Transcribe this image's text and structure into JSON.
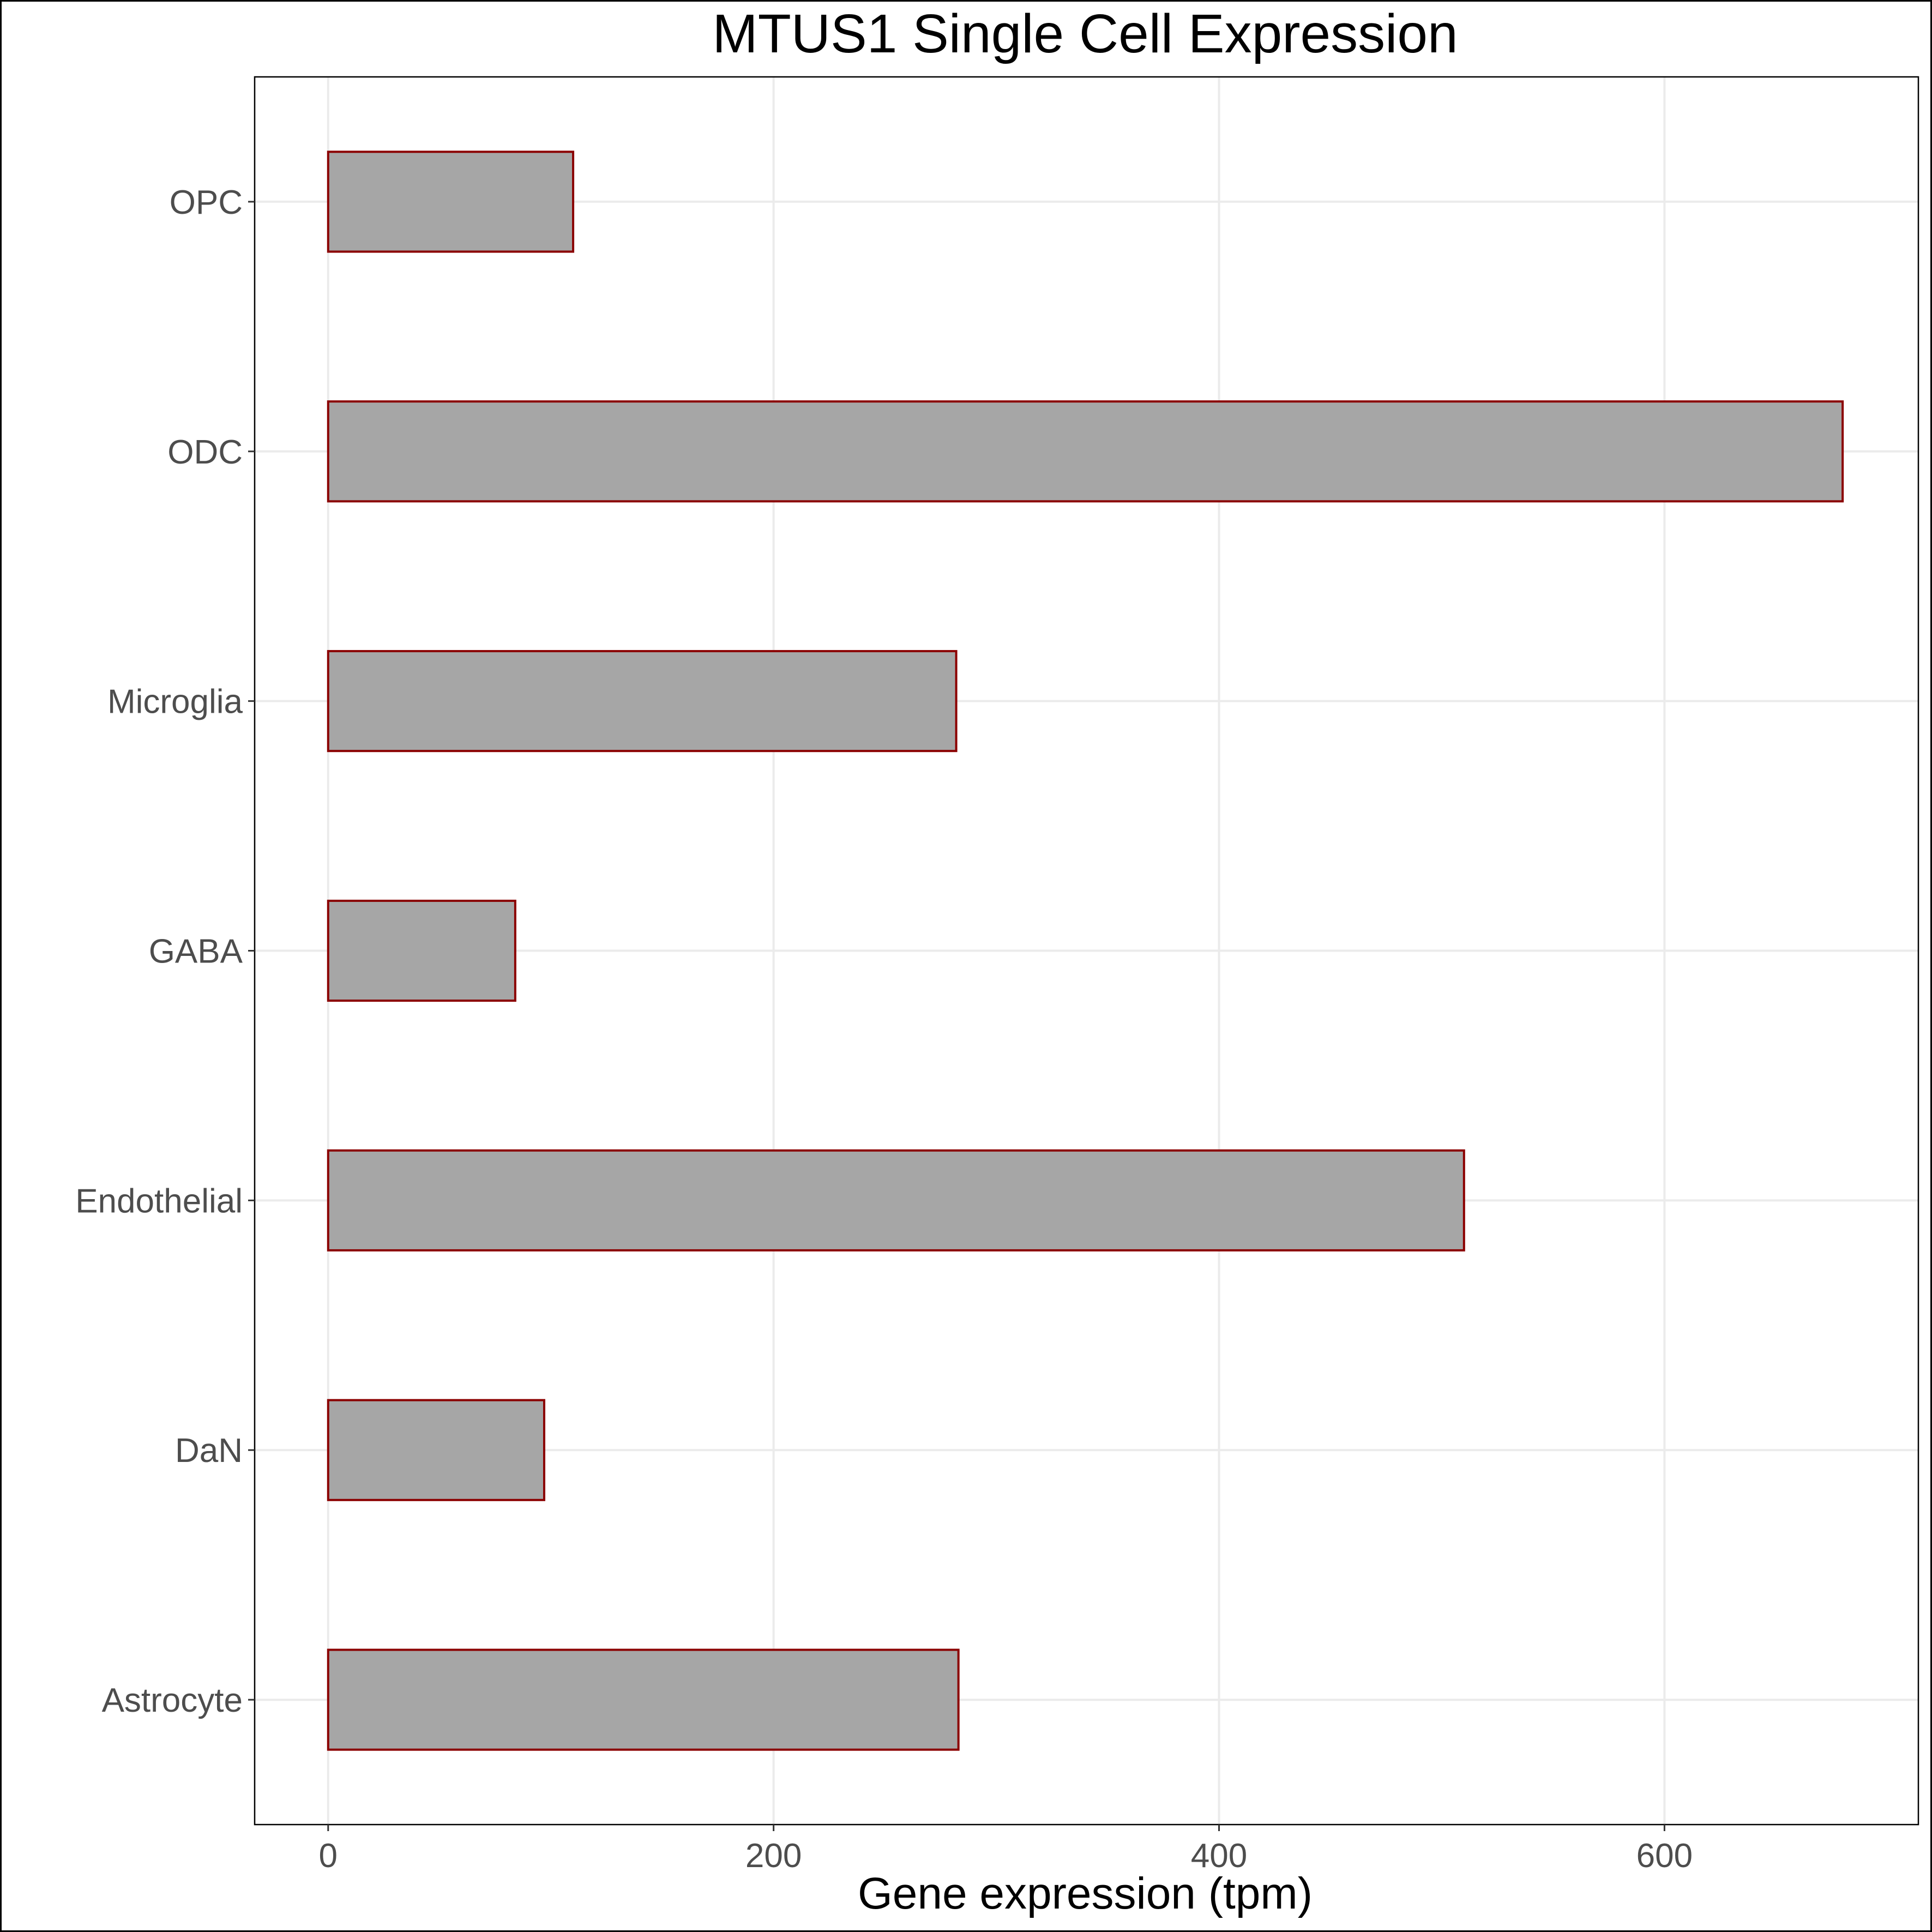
{
  "chart_data": {
    "type": "bar",
    "orientation": "horizontal",
    "title": "MTUS1 Single Cell Expression",
    "xlabel": "Gene expression (tpm)",
    "ylabel": "",
    "categories": [
      "Astrocyte",
      "DaN",
      "Endothelial",
      "GABA",
      "Microglia",
      "ODC",
      "OPC"
    ],
    "values": [
      283,
      97,
      510,
      84,
      282,
      680,
      110
    ],
    "xlim": [
      -33,
      714
    ],
    "xticks": [
      0,
      200,
      400,
      600
    ],
    "grid": true,
    "legend": "none",
    "colors": {
      "bar_fill": "#a6a6a6",
      "bar_stroke": "#8b0000",
      "grid": "#ebebeb",
      "axis_text": "#4d4d4d",
      "border": "#000000"
    }
  }
}
